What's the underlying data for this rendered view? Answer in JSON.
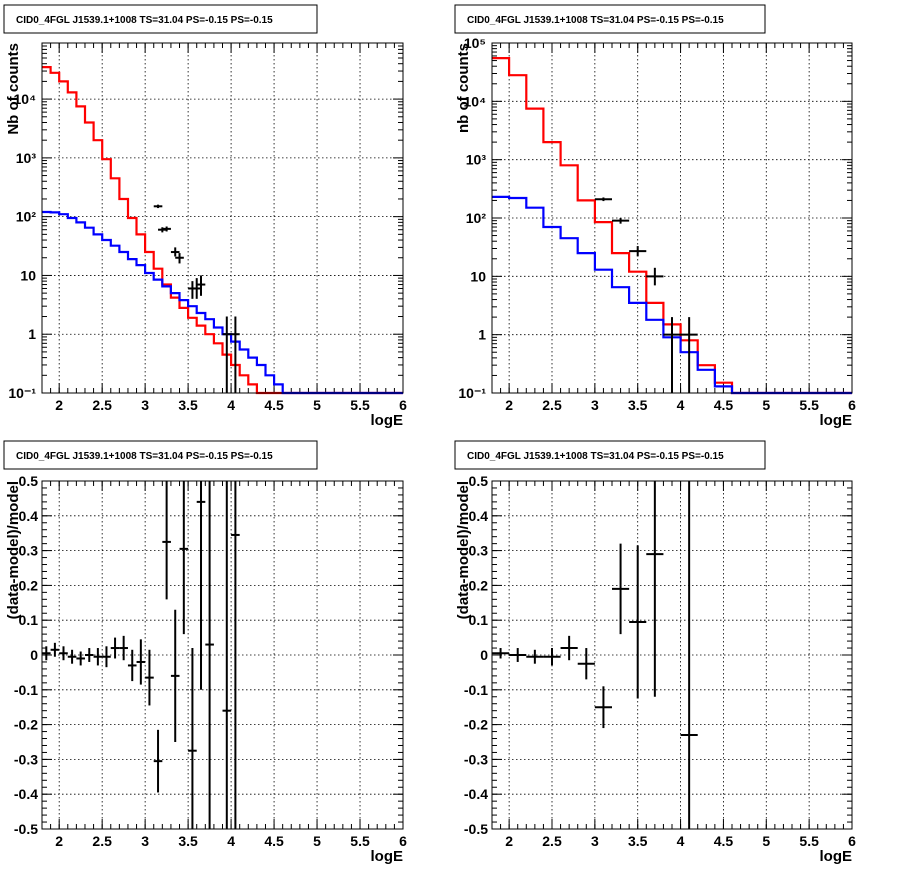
{
  "chart_data": [
    {
      "type": "line",
      "title": "CID0_4FGL J1539.1+1008 TS=31.04 PS=-0.15 PS=-0.15",
      "xlabel": "logE",
      "ylabel": "Nb of counts",
      "xlim": [
        1.8,
        6.0
      ],
      "ylim": [
        0.1,
        90000
      ],
      "yscale": "log",
      "grid": true,
      "xticks": [
        "2",
        "2.5",
        "3",
        "3.5",
        "4",
        "4.5",
        "5",
        "5.5",
        "6"
      ],
      "yticks": [
        "10⁻¹",
        "1",
        "10",
        "10²",
        "10³",
        "10⁴"
      ],
      "series": [
        {
          "color": "#ff0000",
          "style": "step",
          "edges": [
            1.8,
            1.9,
            2.0,
            2.1,
            2.2,
            2.3,
            2.4,
            2.5,
            2.6,
            2.7,
            2.8,
            2.9,
            3.0,
            3.1,
            3.2,
            3.3,
            3.4,
            3.5,
            3.6,
            3.7,
            3.8,
            3.9,
            4.0,
            4.1,
            4.2,
            4.3,
            4.4,
            4.5,
            4.6,
            4.7,
            4.8,
            4.9,
            5.0,
            5.1,
            5.2,
            5.3,
            5.4,
            5.5,
            5.6,
            5.7,
            5.8,
            5.9,
            6.0
          ],
          "values": [
            35000,
            28000,
            20000,
            13000,
            7500,
            4000,
            2000,
            950,
            450,
            200,
            95,
            50,
            25,
            13,
            7,
            4.2,
            2.8,
            1.9,
            1.4,
            1.0,
            0.7,
            0.45,
            0.3,
            0.2,
            0.14,
            0.1,
            0.1,
            0.1,
            0.1,
            0.1,
            0.1,
            0.1,
            0.1,
            0.1,
            0.1,
            0.1,
            0.1,
            0.1,
            0.1,
            0.1,
            0.1,
            0.1
          ]
        },
        {
          "color": "#0000ff",
          "style": "step",
          "edges": [
            1.8,
            1.9,
            2.0,
            2.1,
            2.2,
            2.3,
            2.4,
            2.5,
            2.6,
            2.7,
            2.8,
            2.9,
            3.0,
            3.1,
            3.2,
            3.3,
            3.4,
            3.5,
            3.6,
            3.7,
            3.8,
            3.9,
            4.0,
            4.1,
            4.2,
            4.3,
            4.4,
            4.5,
            4.6,
            4.7,
            4.8,
            4.9,
            5.0,
            5.1,
            5.2,
            5.3,
            5.4,
            5.5,
            5.6,
            5.7,
            5.8,
            5.9,
            6.0
          ],
          "values": [
            120,
            118,
            110,
            95,
            80,
            65,
            50,
            40,
            32,
            25,
            19,
            15,
            11,
            8.5,
            6.5,
            5,
            3.8,
            3,
            2.3,
            1.8,
            1.3,
            1.0,
            0.75,
            0.55,
            0.4,
            0.3,
            0.2,
            0.14,
            0.1,
            0.1,
            0.1,
            0.1,
            0.1,
            0.1,
            0.1,
            0.1,
            0.1,
            0.1,
            0.1,
            0.1,
            0.1,
            0.1
          ]
        }
      ],
      "points": [
        {
          "x": 3.15,
          "y": 150,
          "xerr": 0.05,
          "ylo": 140,
          "yhi": 160
        },
        {
          "x": 3.2,
          "y": 60,
          "xerr": 0.05,
          "ylo": 54,
          "yhi": 66
        },
        {
          "x": 3.25,
          "y": 62,
          "xerr": 0.05,
          "ylo": 56,
          "yhi": 68
        },
        {
          "x": 3.35,
          "y": 25,
          "xerr": 0.05,
          "ylo": 21,
          "yhi": 30
        },
        {
          "x": 3.4,
          "y": 20,
          "xerr": 0.05,
          "ylo": 16,
          "yhi": 24
        },
        {
          "x": 3.55,
          "y": 6,
          "xerr": 0.05,
          "ylo": 4,
          "yhi": 8
        },
        {
          "x": 3.6,
          "y": 6,
          "xerr": 0.05,
          "ylo": 4,
          "yhi": 9
        },
        {
          "x": 3.65,
          "y": 7,
          "xerr": 0.05,
          "ylo": 4.5,
          "yhi": 10
        },
        {
          "x": 3.95,
          "y": 1,
          "xerr": 0.05,
          "ylo": 0.1,
          "yhi": 2
        },
        {
          "x": 4.05,
          "y": 1,
          "xerr": 0.05,
          "ylo": 0.1,
          "yhi": 2
        }
      ]
    },
    {
      "type": "line",
      "title": "CID0_4FGL J1539.1+1008 TS=31.04 PS=-0.15 PS=-0.15",
      "xlabel": "logE",
      "ylabel": "nb of counts",
      "xlim": [
        1.8,
        6.0
      ],
      "ylim": [
        0.1,
        100000
      ],
      "yscale": "log",
      "grid": true,
      "xticks": [
        "2",
        "2.5",
        "3",
        "3.5",
        "4",
        "4.5",
        "5",
        "5.5",
        "6"
      ],
      "yticks": [
        "10⁻¹",
        "1",
        "10",
        "10²",
        "10³",
        "10⁴",
        "10⁵"
      ],
      "series": [
        {
          "color": "#ff0000",
          "style": "step",
          "edges": [
            1.8,
            2.0,
            2.2,
            2.4,
            2.6,
            2.8,
            3.0,
            3.2,
            3.4,
            3.6,
            3.8,
            4.0,
            4.2,
            4.4,
            4.6,
            4.8,
            5.0,
            5.2,
            5.4,
            5.6,
            5.8,
            6.0
          ],
          "values": [
            55000,
            28000,
            7500,
            2000,
            800,
            200,
            85,
            25,
            12,
            3.5,
            1.5,
            0.8,
            0.3,
            0.15,
            0.1,
            0.1,
            0.1,
            0.1,
            0.1,
            0.1,
            0.1
          ]
        },
        {
          "color": "#0000ff",
          "style": "step",
          "edges": [
            1.8,
            2.0,
            2.2,
            2.4,
            2.6,
            2.8,
            3.0,
            3.2,
            3.4,
            3.6,
            3.8,
            4.0,
            4.2,
            4.4,
            4.6,
            4.8,
            5.0,
            5.2,
            5.4,
            5.6,
            5.8,
            6.0
          ],
          "values": [
            230,
            220,
            150,
            70,
            45,
            25,
            13,
            6.5,
            3.5,
            1.8,
            0.9,
            0.5,
            0.25,
            0.13,
            0.1,
            0.1,
            0.1,
            0.1,
            0.1,
            0.1,
            0.1
          ]
        }
      ],
      "points": [
        {
          "x": 3.1,
          "y": 210,
          "xerr": 0.1,
          "ylo": 195,
          "yhi": 225
        },
        {
          "x": 3.3,
          "y": 90,
          "xerr": 0.1,
          "ylo": 80,
          "yhi": 100
        },
        {
          "x": 3.5,
          "y": 27,
          "xerr": 0.1,
          "ylo": 22,
          "yhi": 33
        },
        {
          "x": 3.7,
          "y": 10,
          "xerr": 0.1,
          "ylo": 7,
          "yhi": 14
        },
        {
          "x": 3.9,
          "y": 1,
          "xerr": 0.1,
          "ylo": 0.1,
          "yhi": 2
        },
        {
          "x": 4.1,
          "y": 1,
          "xerr": 0.1,
          "ylo": 0.1,
          "yhi": 2
        }
      ]
    },
    {
      "type": "scatter",
      "title": "CID0_4FGL J1539.1+1008 TS=31.04 PS=-0.15 PS=-0.15",
      "xlabel": "logE",
      "ylabel": "(data-model)/model",
      "xlim": [
        1.8,
        6.0
      ],
      "ylim": [
        -0.5,
        0.5
      ],
      "yscale": "linear",
      "grid": true,
      "xticks": [
        "2",
        "2.5",
        "3",
        "3.5",
        "4",
        "4.5",
        "5",
        "5.5",
        "6"
      ],
      "yticks": [
        "-0.5",
        "-0.4",
        "-0.3",
        "-0.2",
        "-0.1",
        "0",
        "0.1",
        "0.2",
        "0.3",
        "0.4",
        "0.5"
      ],
      "points": [
        {
          "x": 1.85,
          "y": 0.005,
          "xerr": 0.05,
          "ylo": -0.015,
          "yhi": 0.025
        },
        {
          "x": 1.95,
          "y": 0.015,
          "xerr": 0.05,
          "ylo": -0.005,
          "yhi": 0.035
        },
        {
          "x": 2.05,
          "y": 0.005,
          "xerr": 0.05,
          "ylo": -0.015,
          "yhi": 0.025
        },
        {
          "x": 2.15,
          "y": -0.005,
          "xerr": 0.05,
          "ylo": -0.025,
          "yhi": 0.015
        },
        {
          "x": 2.25,
          "y": -0.01,
          "xerr": 0.05,
          "ylo": -0.03,
          "yhi": 0.01
        },
        {
          "x": 2.35,
          "y": 0.0,
          "xerr": 0.05,
          "ylo": -0.02,
          "yhi": 0.02
        },
        {
          "x": 2.45,
          "y": -0.005,
          "xerr": 0.05,
          "ylo": -0.03,
          "yhi": 0.02
        },
        {
          "x": 2.55,
          "y": -0.005,
          "xerr": 0.05,
          "ylo": -0.035,
          "yhi": 0.025
        },
        {
          "x": 2.65,
          "y": 0.02,
          "xerr": 0.05,
          "ylo": -0.01,
          "yhi": 0.05
        },
        {
          "x": 2.75,
          "y": 0.02,
          "xerr": 0.05,
          "ylo": -0.015,
          "yhi": 0.055
        },
        {
          "x": 2.85,
          "y": -0.03,
          "xerr": 0.05,
          "ylo": -0.075,
          "yhi": 0.015
        },
        {
          "x": 2.95,
          "y": -0.02,
          "xerr": 0.05,
          "ylo": -0.085,
          "yhi": 0.045
        },
        {
          "x": 3.05,
          "y": -0.065,
          "xerr": 0.05,
          "ylo": -0.145,
          "yhi": 0.015
        },
        {
          "x": 3.15,
          "y": -0.305,
          "xerr": 0.05,
          "ylo": -0.395,
          "yhi": -0.215
        },
        {
          "x": 3.25,
          "y": 0.325,
          "xerr": 0.05,
          "ylo": 0.16,
          "yhi": 0.5
        },
        {
          "x": 3.35,
          "y": -0.06,
          "xerr": 0.05,
          "ylo": -0.25,
          "yhi": 0.13
        },
        {
          "x": 3.45,
          "y": 0.305,
          "xerr": 0.05,
          "ylo": 0.06,
          "yhi": 0.5
        },
        {
          "x": 3.55,
          "y": -0.275,
          "xerr": 0.05,
          "ylo": -0.5,
          "yhi": 0.02
        },
        {
          "x": 3.65,
          "y": 0.44,
          "xerr": 0.05,
          "ylo": -0.1,
          "yhi": 0.5
        },
        {
          "x": 3.75,
          "y": 0.03,
          "xerr": 0.05,
          "ylo": -0.5,
          "yhi": 0.5
        },
        {
          "x": 3.95,
          "y": -0.16,
          "xerr": 0.05,
          "ylo": -0.5,
          "yhi": 0.5
        },
        {
          "x": 4.05,
          "y": 0.345,
          "xerr": 0.05,
          "ylo": -0.5,
          "yhi": 0.5
        }
      ]
    },
    {
      "type": "scatter",
      "title": "CID0_4FGL J1539.1+1008 TS=31.04 PS=-0.15 PS=-0.15",
      "xlabel": "logE",
      "ylabel": "(data-model)/model",
      "xlim": [
        1.8,
        6.0
      ],
      "ylim": [
        -0.5,
        0.5
      ],
      "yscale": "linear",
      "grid": true,
      "xticks": [
        "2",
        "2.5",
        "3",
        "3.5",
        "4",
        "4.5",
        "5",
        "5.5",
        "6"
      ],
      "yticks": [
        "-0.5",
        "-0.4",
        "-0.3",
        "-0.2",
        "-0.1",
        "0",
        "0.1",
        "0.2",
        "0.3",
        "0.4",
        "0.5"
      ],
      "points": [
        {
          "x": 1.9,
          "y": 0.005,
          "xerr": 0.1,
          "ylo": -0.01,
          "yhi": 0.02
        },
        {
          "x": 2.1,
          "y": 0.0,
          "xerr": 0.1,
          "ylo": -0.02,
          "yhi": 0.02
        },
        {
          "x": 2.3,
          "y": -0.005,
          "xerr": 0.1,
          "ylo": -0.025,
          "yhi": 0.015
        },
        {
          "x": 2.5,
          "y": -0.005,
          "xerr": 0.1,
          "ylo": -0.03,
          "yhi": 0.02
        },
        {
          "x": 2.7,
          "y": 0.02,
          "xerr": 0.1,
          "ylo": -0.015,
          "yhi": 0.055
        },
        {
          "x": 2.9,
          "y": -0.025,
          "xerr": 0.1,
          "ylo": -0.07,
          "yhi": 0.02
        },
        {
          "x": 3.1,
          "y": -0.15,
          "xerr": 0.1,
          "ylo": -0.21,
          "yhi": -0.09
        },
        {
          "x": 3.3,
          "y": 0.19,
          "xerr": 0.1,
          "ylo": 0.06,
          "yhi": 0.32
        },
        {
          "x": 3.5,
          "y": 0.095,
          "xerr": 0.1,
          "ylo": -0.125,
          "yhi": 0.315
        },
        {
          "x": 3.7,
          "y": 0.29,
          "xerr": 0.1,
          "ylo": -0.12,
          "yhi": 0.5
        },
        {
          "x": 4.1,
          "y": -0.23,
          "xerr": 0.1,
          "ylo": -0.5,
          "yhi": 0.5
        }
      ]
    }
  ]
}
